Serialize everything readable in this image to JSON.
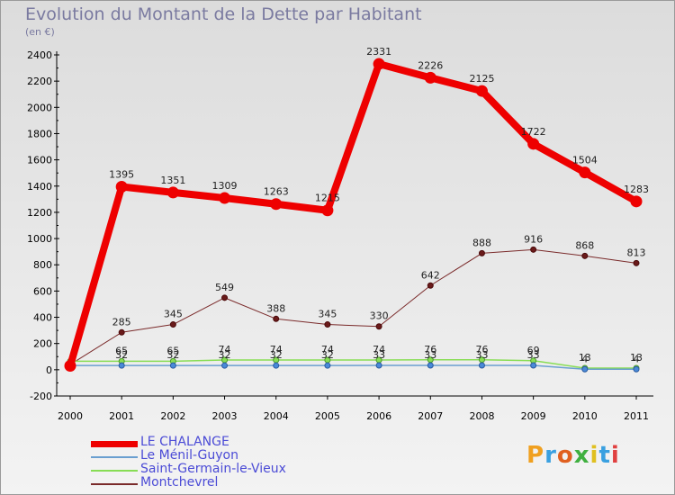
{
  "title": "Evolution du Montant de la Dette par Habitant",
  "unit": "(en €)",
  "logo": "Proxiti",
  "logo_colors": [
    "#f0a020",
    "#3aa0e0",
    "#e06020",
    "#40b040",
    "#e0c020",
    "#3aa0e0",
    "#e04040"
  ],
  "chart_data": {
    "type": "line",
    "title": "Evolution du Montant de la Dette par Habitant",
    "subtitle": "(en €)",
    "categories": [
      "2000",
      "2001",
      "2002",
      "2003",
      "2004",
      "2005",
      "2006",
      "2007",
      "2008",
      "2009",
      "2010",
      "2011"
    ],
    "ylim": [
      -200,
      2400
    ],
    "yticks": [
      -200,
      0,
      200,
      400,
      600,
      800,
      1000,
      1200,
      1400,
      1600,
      1800,
      2000,
      2200,
      2400
    ],
    "grid": false,
    "legend_position": "bottom-left",
    "series": [
      {
        "name": "LE CHALANGE",
        "color": "#ee0000",
        "values": [
          30,
          1395,
          1351,
          1309,
          1263,
          1215,
          2331,
          2226,
          2125,
          1722,
          1504,
          1283
        ],
        "labels": [
          "",
          "1395",
          "1351",
          "1309",
          "1263",
          "1215",
          "2331",
          "2226",
          "2125",
          "1722",
          "1504",
          "1283"
        ]
      },
      {
        "name": "Le Ménil-Guyon",
        "color": "#6a9fd0",
        "values": [
          32,
          32,
          32,
          32,
          32,
          32,
          33,
          33,
          33,
          33,
          4,
          4
        ],
        "labels": [
          "",
          "32",
          "32",
          "32",
          "32",
          "32",
          "33",
          "33",
          "33",
          "33",
          "4",
          "4"
        ]
      },
      {
        "name": "Saint-Germain-le-Vieux",
        "color": "#88dd55",
        "values": [
          65,
          65,
          65,
          74,
          74,
          74,
          74,
          76,
          76,
          69,
          13,
          13
        ],
        "labels": [
          "",
          "65",
          "65",
          "74",
          "74",
          "74",
          "74",
          "76",
          "76",
          "69",
          "13",
          "13"
        ]
      },
      {
        "name": "Montchevrel",
        "color": "#7a2a2a",
        "values": [
          40,
          285,
          345,
          549,
          388,
          345,
          330,
          642,
          888,
          916,
          868,
          813
        ],
        "labels": [
          "",
          "285",
          "345",
          "549",
          "388",
          "345",
          "330",
          "642",
          "888",
          "916",
          "868",
          "813"
        ]
      }
    ]
  }
}
